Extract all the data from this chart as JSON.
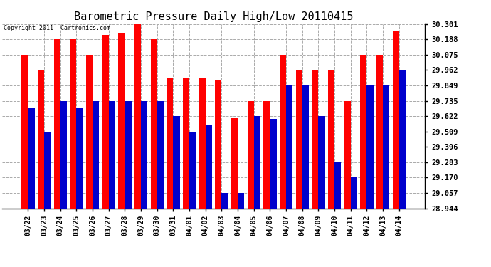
{
  "title": "Barometric Pressure Daily High/Low 20110415",
  "copyright": "Copyright 2011  Cartronics.com",
  "categories": [
    "03/22",
    "03/23",
    "03/24",
    "03/25",
    "03/26",
    "03/27",
    "03/28",
    "03/29",
    "03/30",
    "03/31",
    "04/01",
    "04/02",
    "04/03",
    "04/04",
    "04/05",
    "04/06",
    "04/07",
    "04/08",
    "04/09",
    "04/10",
    "04/11",
    "04/12",
    "04/13",
    "04/14"
  ],
  "highs": [
    30.075,
    29.962,
    30.188,
    30.188,
    30.075,
    30.22,
    30.23,
    30.301,
    30.188,
    29.9,
    29.9,
    29.9,
    29.89,
    29.61,
    29.735,
    29.735,
    30.075,
    29.962,
    29.962,
    29.962,
    29.735,
    30.075,
    30.075,
    30.25
  ],
  "lows": [
    29.68,
    29.509,
    29.735,
    29.68,
    29.735,
    29.735,
    29.735,
    29.735,
    29.735,
    29.622,
    29.509,
    29.56,
    29.057,
    29.057,
    29.622,
    29.6,
    29.849,
    29.849,
    29.622,
    29.283,
    29.17,
    29.849,
    29.849,
    29.962
  ],
  "high_color": "#ff0000",
  "low_color": "#0000cc",
  "bg_color": "#ffffff",
  "grid_color": "#aaaaaa",
  "title_fontsize": 11,
  "yticks": [
    28.944,
    29.057,
    29.17,
    29.283,
    29.396,
    29.509,
    29.622,
    29.735,
    29.849,
    29.962,
    30.075,
    30.188,
    30.301
  ],
  "ymin": 28.944,
  "ymax": 30.301,
  "bar_width": 0.4
}
